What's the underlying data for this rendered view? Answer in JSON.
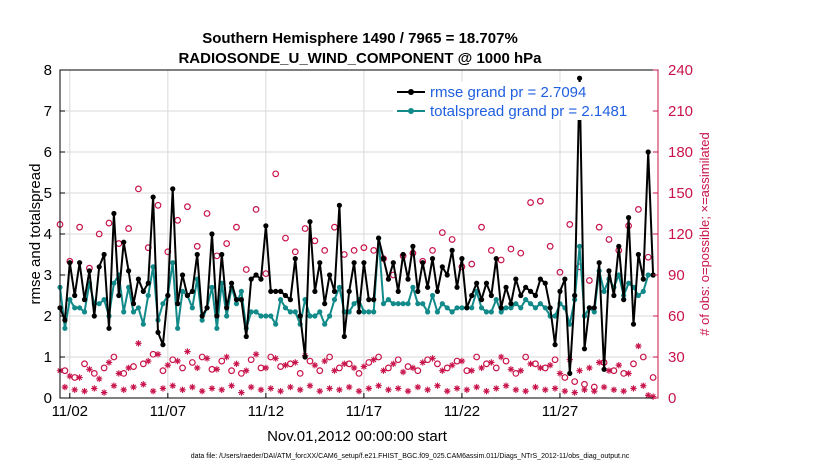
{
  "chart_data": {
    "type": "line",
    "title_line1": "Southern Hemisphere 1490 / 7965 = 18.707%",
    "title_line2": "RADIOSONDE_U_WIND_COMPONENT @ 1000 hPa",
    "ylabel": "rmse and totalspread",
    "ylabel_right": "# of obs: o=possible; ×=assimilated",
    "xlabel": "Nov.01,2012 00:00:00 start",
    "xlim": [
      0.5,
      31.0
    ],
    "ylim": [
      0,
      8
    ],
    "ylim_right": [
      0,
      240
    ],
    "yticks": [
      0,
      1,
      2,
      3,
      4,
      5,
      6,
      7,
      8
    ],
    "yticks_right": [
      0,
      30,
      60,
      90,
      120,
      150,
      180,
      210,
      240
    ],
    "xticks": [
      {
        "label": "11/02",
        "x": 1
      },
      {
        "label": "11/07",
        "x": 6
      },
      {
        "label": "11/12",
        "x": 11
      },
      {
        "label": "11/17",
        "x": 16
      },
      {
        "label": "11/22",
        "x": 21
      },
      {
        "label": "11/27",
        "x": 26
      }
    ],
    "colors": {
      "rmse": "#000000",
      "totalspread": "#138a8a",
      "obs": "#c8144b",
      "legend_text": "#1f5fe0"
    },
    "series": [
      {
        "name": "rmse",
        "legend": "rmse grand pr = 2.7094",
        "x": [
          0.5,
          0.75,
          1.0,
          1.25,
          1.5,
          1.75,
          2.0,
          2.25,
          2.5,
          2.75,
          3.0,
          3.25,
          3.5,
          3.75,
          4.0,
          4.25,
          4.5,
          4.75,
          5.0,
          5.25,
          5.5,
          5.75,
          6.0,
          6.25,
          6.5,
          6.75,
          7.0,
          7.25,
          7.5,
          7.75,
          8.0,
          8.25,
          8.5,
          8.75,
          9.0,
          9.25,
          9.5,
          9.75,
          10.0,
          10.25,
          10.5,
          10.75,
          11.0,
          11.25,
          11.5,
          11.75,
          12.0,
          12.25,
          12.5,
          12.75,
          13.0,
          13.25,
          13.5,
          13.75,
          14.0,
          14.25,
          14.5,
          14.75,
          15.0,
          15.25,
          15.5,
          15.75,
          16.0,
          16.25,
          16.5,
          16.75,
          17.0,
          17.25,
          17.5,
          17.75,
          18.0,
          18.25,
          18.5,
          18.75,
          19.0,
          19.25,
          19.5,
          19.75,
          20.0,
          20.25,
          20.5,
          20.75,
          21.0,
          21.25,
          21.5,
          21.75,
          22.0,
          22.25,
          22.5,
          22.75,
          23.0,
          23.25,
          23.5,
          23.75,
          24.0,
          24.25,
          24.5,
          24.75,
          25.0,
          25.25,
          25.5,
          25.75,
          26.0,
          26.25,
          26.5,
          26.75,
          27.0,
          27.25,
          27.5,
          27.75,
          28.0,
          28.25,
          28.5,
          28.75,
          29.0,
          29.25,
          29.5,
          29.75,
          30.0,
          30.25,
          30.5,
          30.75
        ],
        "values": [
          2.2,
          1.9,
          3.3,
          2.5,
          3.3,
          2.4,
          3.1,
          2.0,
          3.2,
          3.5,
          1.7,
          4.5,
          2.5,
          3.8,
          3.1,
          2.3,
          2.9,
          2.6,
          2.8,
          4.9,
          1.6,
          1.3,
          2.5,
          5.1,
          2.3,
          3.0,
          2.5,
          2.6,
          3.5,
          2.0,
          2.2,
          4.0,
          2.0,
          3.5,
          2.2,
          2.8,
          2.4,
          2.4,
          1.5,
          2.9,
          3.0,
          2.9,
          4.2,
          2.6,
          2.6,
          2.6,
          2.5,
          2.4,
          3.4,
          2.0,
          1.0,
          4.3,
          2.6,
          3.3,
          2.3,
          3.0,
          2.6,
          4.7,
          1.5,
          2.6,
          3.3,
          2.1,
          3.3,
          2.4,
          2.4,
          3.9,
          3.4,
          2.9,
          3.3,
          2.6,
          3.5,
          2.9,
          3.7,
          2.6,
          3.3,
          2.7,
          3.4,
          2.6,
          3.2,
          3.0,
          3.6,
          2.7,
          3.4,
          2.2,
          2.5,
          2.8,
          2.4,
          2.8,
          2.5,
          3.4,
          2.2,
          2.7,
          2.3,
          2.9,
          2.5,
          2.7,
          2.6,
          2.5,
          2.9,
          2.8,
          2.2,
          1.3,
          2.6,
          2.9,
          0.6,
          2.5,
          7.8,
          1.2,
          2.2,
          2.2,
          3.3,
          0.7,
          3.1,
          2.5,
          3.7,
          2.4,
          4.4,
          1.8,
          3.5,
          2.9,
          6.0,
          3.0
        ],
        "marker": "o"
      },
      {
        "name": "totalspread",
        "legend": "totalspread grand pr = 2.1481",
        "x": [
          0.5,
          0.75,
          1.0,
          1.25,
          1.5,
          1.75,
          2.0,
          2.25,
          2.5,
          2.75,
          3.0,
          3.25,
          3.5,
          3.75,
          4.0,
          4.25,
          4.5,
          4.75,
          5.0,
          5.25,
          5.5,
          5.75,
          6.0,
          6.25,
          6.5,
          6.75,
          7.0,
          7.25,
          7.5,
          7.75,
          8.0,
          8.25,
          8.5,
          8.75,
          9.0,
          9.25,
          9.5,
          9.75,
          10.0,
          10.25,
          10.5,
          10.75,
          11.0,
          11.25,
          11.5,
          11.75,
          12.0,
          12.25,
          12.5,
          12.75,
          13.0,
          13.25,
          13.5,
          13.75,
          14.0,
          14.25,
          14.5,
          14.75,
          15.0,
          15.25,
          15.5,
          15.75,
          16.0,
          16.25,
          16.5,
          16.75,
          17.0,
          17.25,
          17.5,
          17.75,
          18.0,
          18.25,
          18.5,
          18.75,
          19.0,
          19.25,
          19.5,
          19.75,
          20.0,
          20.25,
          20.5,
          20.75,
          21.0,
          21.25,
          21.5,
          21.75,
          22.0,
          22.25,
          22.5,
          22.75,
          23.0,
          23.25,
          23.5,
          23.75,
          24.0,
          24.25,
          24.5,
          24.75,
          25.0,
          25.25,
          25.5,
          25.75,
          26.0,
          26.25,
          26.5,
          26.75,
          27.0,
          27.25,
          27.5,
          27.75,
          28.0,
          28.25,
          28.5,
          28.75,
          29.0,
          29.25,
          29.5,
          29.75,
          30.0,
          30.25,
          30.5,
          30.75
        ],
        "values": [
          2.7,
          1.7,
          2.4,
          2.2,
          2.2,
          2.1,
          2.8,
          2.3,
          2.3,
          2.4,
          2.0,
          2.8,
          3.0,
          2.1,
          2.7,
          2.1,
          2.2,
          1.8,
          2.5,
          3.2,
          1.9,
          2.3,
          2.5,
          3.3,
          1.7,
          2.6,
          2.5,
          2.2,
          2.9,
          1.9,
          2.2,
          2.7,
          1.7,
          2.8,
          2.0,
          2.7,
          2.3,
          2.6,
          1.7,
          2.1,
          2.1,
          2.0,
          2.0,
          2.0,
          1.8,
          2.4,
          2.2,
          2.1,
          2.1,
          1.8,
          2.4,
          2.0,
          2.0,
          2.1,
          1.8,
          2.0,
          2.4,
          2.7,
          2.1,
          2.1,
          2.3,
          2.4,
          2.1,
          2.1,
          2.1,
          3.9,
          2.3,
          2.4,
          2.3,
          2.3,
          2.3,
          2.3,
          2.7,
          2.3,
          2.3,
          2.1,
          2.5,
          2.1,
          2.3,
          2.2,
          2.1,
          2.2,
          2.2,
          2.2,
          2.2,
          2.6,
          2.2,
          2.1,
          2.1,
          2.4,
          2.1,
          2.2,
          2.2,
          2.3,
          2.2,
          2.4,
          2.3,
          2.2,
          2.3,
          2.2,
          2.0,
          2.0,
          2.3,
          2.2,
          1.8,
          2.4,
          3.7,
          2.0,
          2.2,
          2.1,
          3.1,
          2.6,
          2.9,
          2.7,
          3.0,
          2.5,
          2.8,
          2.7,
          2.5,
          2.6,
          3.0,
          3.0
        ],
        "marker": "o"
      },
      {
        "name": "obs_possible",
        "axis": "right",
        "marker": "o",
        "x": [
          0.5,
          0.75,
          1.0,
          1.25,
          1.5,
          1.75,
          2.0,
          2.25,
          2.5,
          2.75,
          3.0,
          3.25,
          3.5,
          3.75,
          4.0,
          4.25,
          4.5,
          4.75,
          5.0,
          5.25,
          5.5,
          5.75,
          6.0,
          6.25,
          6.5,
          6.75,
          7.0,
          7.25,
          7.5,
          7.75,
          8.0,
          8.25,
          8.5,
          8.75,
          9.0,
          9.25,
          9.5,
          9.75,
          10.0,
          10.25,
          10.5,
          10.75,
          11.0,
          11.25,
          11.5,
          11.75,
          12.0,
          12.25,
          12.5,
          12.75,
          13.0,
          13.25,
          13.5,
          13.75,
          14.0,
          14.25,
          14.5,
          14.75,
          15.0,
          15.25,
          15.5,
          15.75,
          16.0,
          16.25,
          16.5,
          16.75,
          17.0,
          17.25,
          17.5,
          17.75,
          18.0,
          18.25,
          18.5,
          18.75,
          19.0,
          19.25,
          19.5,
          19.75,
          20.0,
          20.25,
          20.5,
          20.75,
          21.0,
          21.25,
          21.5,
          21.75,
          22.0,
          22.25,
          22.5,
          22.75,
          23.0,
          23.25,
          23.5,
          23.75,
          24.0,
          24.25,
          24.5,
          24.75,
          25.0,
          25.25,
          25.5,
          25.75,
          26.0,
          26.25,
          26.5,
          26.75,
          27.0,
          27.25,
          27.5,
          27.75,
          28.0,
          28.25,
          28.5,
          28.75,
          29.0,
          29.25,
          29.5,
          29.75,
          30.0,
          30.25,
          30.5,
          30.75
        ],
        "values": [
          127,
          20,
          100,
          15,
          125,
          25,
          95,
          18,
          120,
          22,
          128,
          30,
          113,
          18,
          124,
          23,
          153,
          25,
          110,
          32,
          141,
          20,
          107,
          28,
          130,
          22,
          140,
          26,
          111,
          30,
          135,
          21,
          104,
          27,
          113,
          20,
          125,
          18,
          94,
          28,
          138,
          22,
          91,
          30,
          164,
          23,
          117,
          25,
          107,
          18,
          124,
          27,
          115,
          20,
          108,
          30,
          125,
          22,
          105,
          25,
          108,
          18,
          110,
          26,
          108,
          30,
          102,
          22,
          90,
          28,
          104,
          23,
          106,
          20,
          100,
          28,
          108,
          25,
          121,
          22,
          116,
          27,
          96,
          20,
          98,
          30,
          125,
          25,
          108,
          22,
          101,
          27,
          109,
          18,
          106,
          30,
          143,
          25,
          144,
          22,
          111,
          28,
          92,
          15,
          127,
          12,
          96,
          10,
          86,
          8,
          125,
          26,
          116,
          20,
          108,
          18,
          126,
          25,
          138,
          30,
          103,
          15
        ]
      },
      {
        "name": "obs_assimilated",
        "axis": "right",
        "marker": "*",
        "x": [
          0.5,
          0.75,
          1.0,
          1.25,
          1.5,
          1.75,
          2.0,
          2.25,
          2.5,
          2.75,
          3.0,
          3.25,
          3.5,
          3.75,
          4.0,
          4.25,
          4.5,
          4.75,
          5.0,
          5.25,
          5.5,
          5.75,
          6.0,
          6.25,
          6.5,
          6.75,
          7.0,
          7.25,
          7.5,
          7.75,
          8.0,
          8.25,
          8.5,
          8.75,
          9.0,
          9.25,
          9.5,
          9.75,
          10.0,
          10.25,
          10.5,
          10.75,
          11.0,
          11.25,
          11.5,
          11.75,
          12.0,
          12.25,
          12.5,
          12.75,
          13.0,
          13.25,
          13.5,
          13.75,
          14.0,
          14.25,
          14.5,
          14.75,
          15.0,
          15.25,
          15.5,
          15.75,
          16.0,
          16.25,
          16.5,
          16.75,
          17.0,
          17.25,
          17.5,
          17.75,
          18.0,
          18.25,
          18.5,
          18.75,
          19.0,
          19.25,
          19.5,
          19.75,
          20.0,
          20.25,
          20.5,
          20.75,
          21.0,
          21.25,
          21.5,
          21.75,
          22.0,
          22.25,
          22.5,
          22.75,
          23.0,
          23.25,
          23.5,
          23.75,
          24.0,
          24.25,
          24.5,
          24.75,
          25.0,
          25.25,
          25.5,
          25.75,
          26.0,
          26.25,
          26.5,
          26.75,
          27.0,
          27.25,
          27.5,
          27.75,
          28.0,
          28.25,
          28.5,
          28.75,
          29.0,
          29.25,
          29.5,
          29.75,
          30.0,
          30.25,
          30.5,
          30.75
        ],
        "values": [
          20,
          8,
          16,
          6,
          15,
          5,
          21,
          7,
          14,
          4,
          26,
          9,
          18,
          6,
          22,
          8,
          40,
          10,
          27,
          5,
          32,
          7,
          24,
          9,
          27,
          6,
          34,
          8,
          22,
          5,
          29,
          7,
          21,
          6,
          30,
          9,
          25,
          4,
          20,
          8,
          32,
          6,
          22,
          7,
          29,
          5,
          24,
          8,
          26,
          6,
          31,
          9,
          24,
          5,
          27,
          7,
          20,
          6,
          25,
          8,
          22,
          5,
          23,
          7,
          28,
          9,
          20,
          6,
          25,
          7,
          19,
          5,
          22,
          8,
          26,
          6,
          29,
          9,
          20,
          5,
          24,
          7,
          27,
          6,
          20,
          8,
          22,
          5,
          26,
          7,
          30,
          9,
          21,
          6,
          20,
          5,
          25,
          8,
          22,
          6,
          24,
          7,
          18,
          5,
          28,
          4,
          20,
          6,
          22,
          5,
          26,
          8,
          20,
          6,
          24,
          5,
          18,
          7,
          38,
          9,
          2,
          1
        ]
      }
    ]
  },
  "footer": "data file: /Users/raeder/DAI/ATM_forcXX/CAM6_setup/f.e21.FHIST_BGC.f09_025.CAM6assim.011/Diags_NTrS_2012-11/obs_diag_output.nc"
}
